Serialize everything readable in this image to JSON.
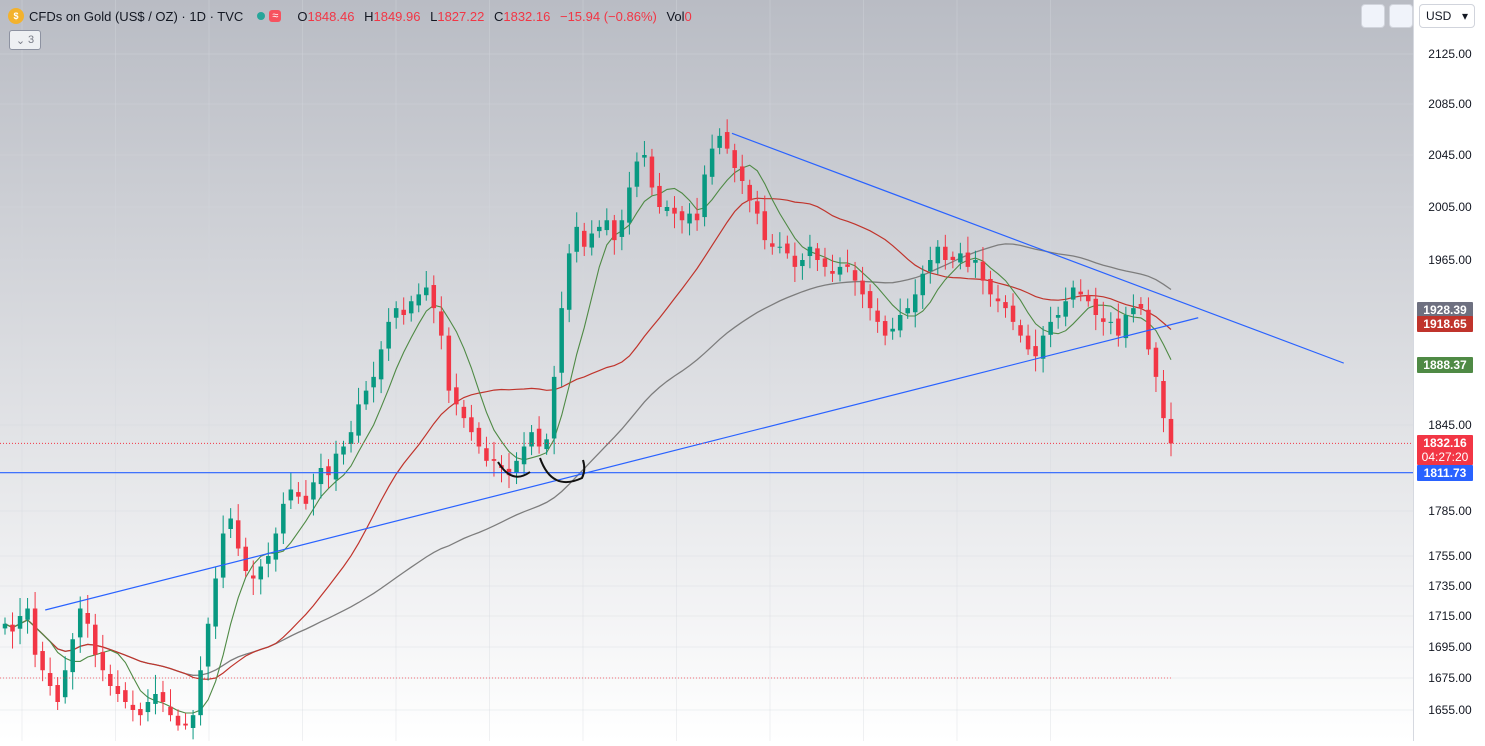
{
  "header": {
    "symbol": "CFDs on Gold (US$ / OZ) · 1D · TVC",
    "logo_icon": "gold-coin-icon",
    "open_key": "O",
    "open": "1848.46",
    "high_key": "H",
    "high": "1849.96",
    "low_key": "L",
    "low": "1827.22",
    "close_key": "C",
    "close": "1832.16",
    "change": "−15.94 (−0.86%)",
    "vol_key": "Vol",
    "vol": "0",
    "collapse_label": "3"
  },
  "currency": {
    "selected": "USD"
  },
  "colors": {
    "up": "#089981",
    "down": "#f23645",
    "trendline": "#2962ff",
    "ma_fast": "#4f8a45",
    "ma_mid": "#c0342c",
    "ma_slow": "#7d7d7d",
    "price_label": "#f23645"
  },
  "chart_data": {
    "type": "candlestick",
    "ylim": [
      1625,
      2145
    ],
    "y_ticks": [
      "2125.00",
      "2085.00",
      "2045.00",
      "2005.00",
      "1965.00",
      "1845.00",
      "1785.00",
      "1755.00",
      "1735.00",
      "1715.00",
      "1695.00",
      "1675.00",
      "1655.00"
    ],
    "price_labels": [
      {
        "value": 1928.39,
        "text": "1928.39",
        "color": "#6e7080"
      },
      {
        "value": 1918.65,
        "text": "1918.65",
        "color": "#c0342c"
      },
      {
        "value": 1888.37,
        "text": "1888.37",
        "color": "#4f8a45"
      },
      {
        "value": 1832.16,
        "text": "1832.16",
        "subtext": "04:27:20",
        "color": "#f23645"
      },
      {
        "value": 1811.73,
        "text": "1811.73",
        "color": "#2962ff"
      }
    ],
    "horizontal_line": 1811.73,
    "close_dotted_line": 1832.16,
    "low_dotted_line": 1675.0,
    "series": [
      {
        "name": "",
        "kind": "candles",
        "closes": [
          1710,
          1705,
          1715,
          1720,
          1690,
          1680,
          1670,
          1660,
          1680,
          1700,
          1720,
          1710,
          1690,
          1680,
          1670,
          1665,
          1660,
          1655,
          1650,
          1660,
          1665,
          1660,
          1650,
          1640,
          1640,
          1650,
          1680,
          1710,
          1740,
          1770,
          1780,
          1760,
          1745,
          1740,
          1748,
          1755,
          1770,
          1790,
          1800,
          1795,
          1790,
          1805,
          1815,
          1810,
          1825,
          1830,
          1840,
          1860,
          1870,
          1880,
          1900,
          1920,
          1930,
          1925,
          1935,
          1940,
          1945,
          1930,
          1910,
          1870,
          1860,
          1850,
          1840,
          1830,
          1820,
          1820,
          1815,
          1810,
          1820,
          1830,
          1840,
          1830,
          1835,
          1880,
          1930,
          1970,
          1990,
          1975,
          1985,
          1990,
          1995,
          1980,
          1995,
          2020,
          2040,
          2045,
          2020,
          2005,
          2005,
          2000,
          1995,
          2000,
          1995,
          2030,
          2050,
          2060,
          2050,
          2035,
          2025,
          2010,
          2000,
          1980,
          1975,
          1975,
          1970,
          1960,
          1965,
          1975,
          1965,
          1960,
          1955,
          1960,
          1960,
          1950,
          1940,
          1930,
          1920,
          1910,
          1915,
          1925,
          1930,
          1940,
          1955,
          1965,
          1975,
          1965,
          1965,
          1970,
          1960,
          1965,
          1950,
          1940,
          1935,
          1930,
          1920,
          1910,
          1900,
          1895,
          1910,
          1920,
          1925,
          1935,
          1945,
          1940,
          1935,
          1925,
          1920,
          1920,
          1910,
          1925,
          1930,
          1930,
          1900,
          1880,
          1850,
          1832.16
        ]
      }
    ],
    "trendlines": [
      {
        "from": [
          0.032,
          1719
        ],
        "to": [
          0.848,
          1923
        ]
      },
      {
        "from": [
          0.518,
          2062
        ],
        "to": [
          0.951,
          1890
        ]
      }
    ]
  }
}
